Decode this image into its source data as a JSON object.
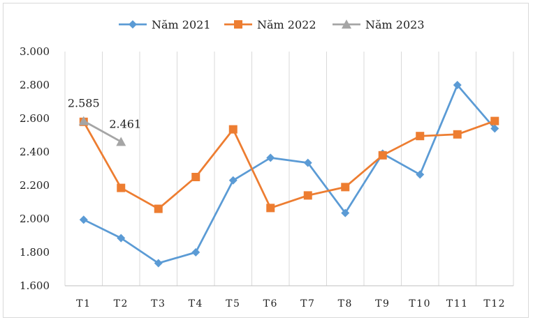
{
  "chart_data": {
    "type": "line",
    "title": "",
    "xlabel": "",
    "ylabel": "",
    "categories": [
      "T1",
      "T2",
      "T3",
      "T4",
      "T5",
      "T6",
      "T7",
      "T8",
      "T9",
      "T10",
      "T11",
      "T12"
    ],
    "ylim": [
      1600,
      3000
    ],
    "yticks": [
      1600,
      1800,
      2000,
      2200,
      2400,
      2600,
      2800,
      3000
    ],
    "ytick_labels": [
      "1.600",
      "1.800",
      "2.000",
      "2.200",
      "2.400",
      "2.600",
      "2.800",
      "3.000"
    ],
    "grid": "vertical",
    "legend_position": "top",
    "series": [
      {
        "name": "Năm 2021",
        "color": "#5b9bd5",
        "marker": "diamond",
        "values": [
          1995,
          1885,
          1735,
          1800,
          2230,
          2365,
          2335,
          2035,
          2390,
          2265,
          2800,
          2540
        ]
      },
      {
        "name": "Năm 2022",
        "color": "#ed7d31",
        "marker": "square",
        "values": [
          2580,
          2185,
          2060,
          2250,
          2535,
          2065,
          2140,
          2190,
          2380,
          2495,
          2505,
          2585
        ]
      },
      {
        "name": "Năm 2023",
        "color": "#a5a5a5",
        "marker": "triangle",
        "values": [
          2585,
          2461,
          null,
          null,
          null,
          null,
          null,
          null,
          null,
          null,
          null,
          null
        ],
        "data_labels": [
          "2.585",
          "2.461"
        ]
      }
    ]
  }
}
